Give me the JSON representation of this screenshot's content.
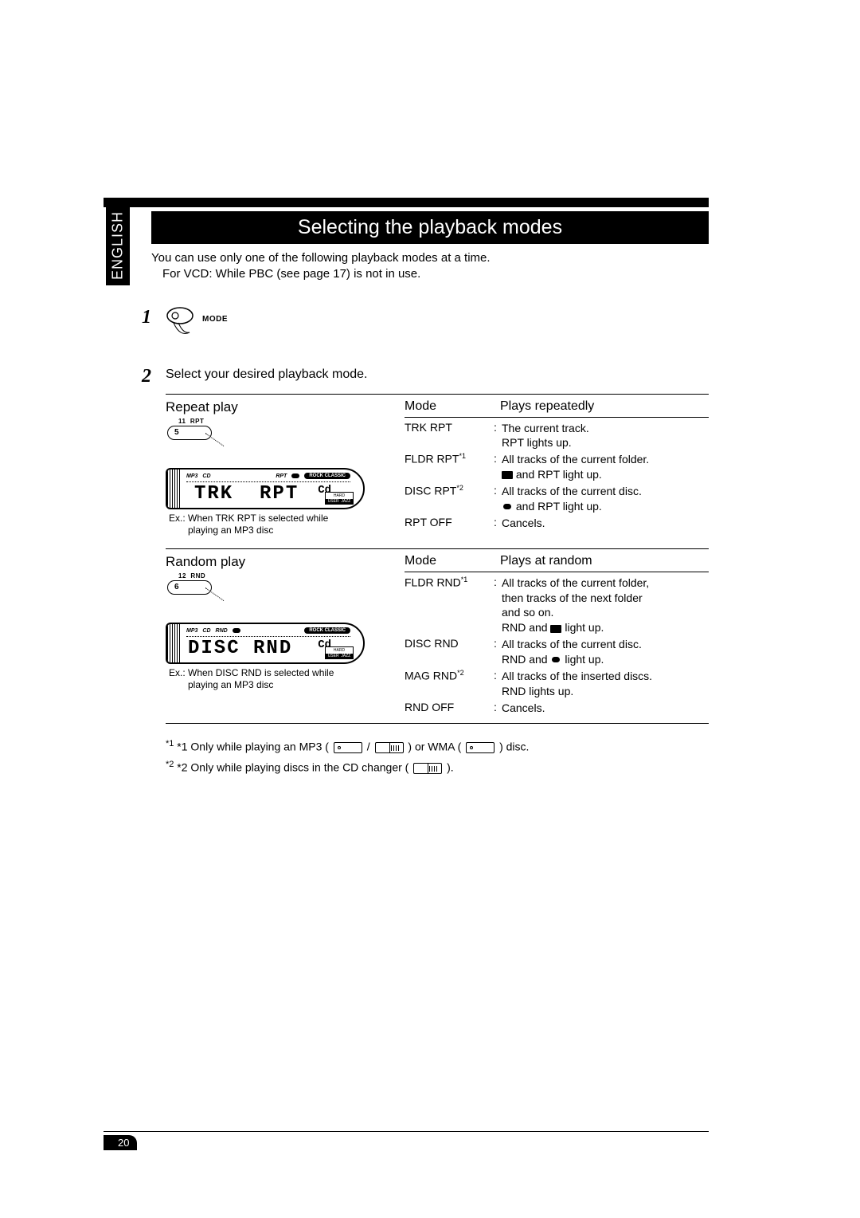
{
  "lang_tab": "ENGLISH",
  "title": "Selecting the playback modes",
  "intro_line1": "You can use only one of the following playback modes at a time.",
  "intro_line2": "For VCD: While PBC (see page 17) is not in use.",
  "step1_num": "1",
  "step1_mode_label": "MODE",
  "step2_num": "2",
  "step2_text": "Select your desired playback mode.",
  "repeat": {
    "title": "Repeat play",
    "btn_top": "11  RPT",
    "btn_num": "5",
    "seg_text": "TRK  RPT",
    "cd_label": "Cd",
    "sound_top": "HARD",
    "sound_bot": "USER  JAZZ",
    "top_mp3": "MP3",
    "top_cd": "CD",
    "top_rpt": "RPT",
    "top_badge": "ROCK CLASSIC",
    "caption_l1": "Ex.: When  TRK RPT  is selected while",
    "caption_l2": "playing an MP3 disc",
    "mode_col": "Mode",
    "plays_col": "Plays repeatedly",
    "rows": [
      {
        "mode": "TRK RPT",
        "sup": "",
        "desc_l1": "The current track.",
        "desc_l2": "RPT lights up."
      },
      {
        "mode": "FLDR RPT",
        "sup": "*1",
        "desc_l1": "All tracks of the current folder.",
        "desc_l2": "__FOLDER__ and RPT light up."
      },
      {
        "mode": "DISC RPT",
        "sup": "*2",
        "desc_l1": "All tracks of the current disc.",
        "desc_l2": "__DISC__ and RPT light up."
      },
      {
        "mode": "RPT OFF",
        "sup": "",
        "desc_l1": "Cancels.",
        "desc_l2": ""
      }
    ]
  },
  "random": {
    "title": "Random play",
    "btn_top": "12  RND",
    "btn_num": "6",
    "seg_text": "DISC RND",
    "cd_label": "Cd",
    "top_mp3": "MP3",
    "top_cd": "CD",
    "top_rnd": "RND",
    "top_badge": "ROCK CLASSIC",
    "caption_l1": "Ex.: When  DISC RND  is selected while",
    "caption_l2": "playing an MP3 disc",
    "mode_col": "Mode",
    "plays_col": "Plays at random",
    "rows": [
      {
        "mode": "FLDR RND",
        "sup": "*1",
        "desc_l1": "All tracks of the current folder,",
        "desc_l2": "then tracks of the next folder",
        "desc_l3": "and so on.",
        "desc_l4": "RND and __FOLDER__ light up."
      },
      {
        "mode": "DISC RND",
        "sup": "",
        "desc_l1": "All tracks of the current disc.",
        "desc_l2": "RND and __DISC__ light up."
      },
      {
        "mode": "MAG RND",
        "sup": "*2",
        "desc_l1": "All tracks of the inserted discs.",
        "desc_l2": "RND lights up."
      },
      {
        "mode": "RND OFF",
        "sup": "",
        "desc_l1": "Cancels.",
        "desc_l2": ""
      }
    ]
  },
  "footnote1_pre": "*1 Only while playing an MP3 (",
  "footnote1_mid": " / ",
  "footnote1_mid2": ") or WMA (",
  "footnote1_end": ") disc.",
  "footnote2_pre": "*2 Only while playing discs in the CD changer (",
  "footnote2_end": ").",
  "page_number": "20",
  "colors": {
    "bg": "#ffffff",
    "fg": "#000000"
  }
}
